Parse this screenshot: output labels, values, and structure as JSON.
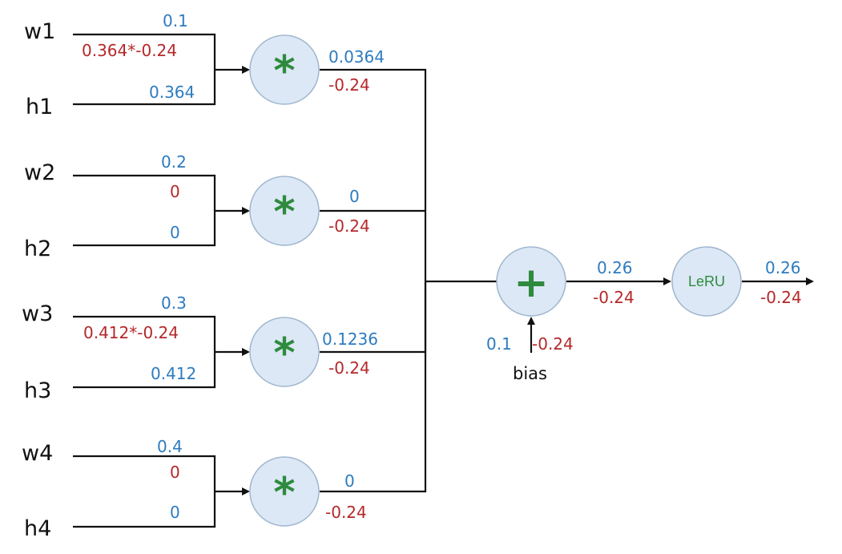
{
  "inputs": [
    {
      "name": "w1",
      "value": "0.1"
    },
    {
      "name": "h1",
      "value": "0.364"
    },
    {
      "name": "w2",
      "value": "0.2"
    },
    {
      "name": "h2",
      "value": "0"
    },
    {
      "name": "w3",
      "value": "0.3"
    },
    {
      "name": "h3",
      "value": "0.412"
    },
    {
      "name": "w4",
      "value": "0.4"
    },
    {
      "name": "h4",
      "value": "0"
    }
  ],
  "weight_gradients": [
    "0.364*-0.24",
    "0",
    "0.412*-0.24",
    "0"
  ],
  "multiply_nodes": [
    {
      "symbol": "*",
      "output": "0.0364",
      "gradient": "-0.24"
    },
    {
      "symbol": "*",
      "output": "0",
      "gradient": "-0.24"
    },
    {
      "symbol": "*",
      "output": "0.1236",
      "gradient": "-0.24"
    },
    {
      "symbol": "*",
      "output": "0",
      "gradient": "-0.24"
    }
  ],
  "sum_node": {
    "symbol": "+",
    "output": "0.26",
    "gradient": "-0.24"
  },
  "bias": {
    "label": "bias",
    "value": "0.1",
    "gradient": "-0.24"
  },
  "activation_node": {
    "label": "LeRU",
    "output": "0.26",
    "gradient": "-0.24"
  },
  "colors": {
    "forward": "#2e7bbf",
    "gradient": "#b5282a",
    "operator": "#2e8b3e",
    "node_fill": "#dce8f5"
  }
}
